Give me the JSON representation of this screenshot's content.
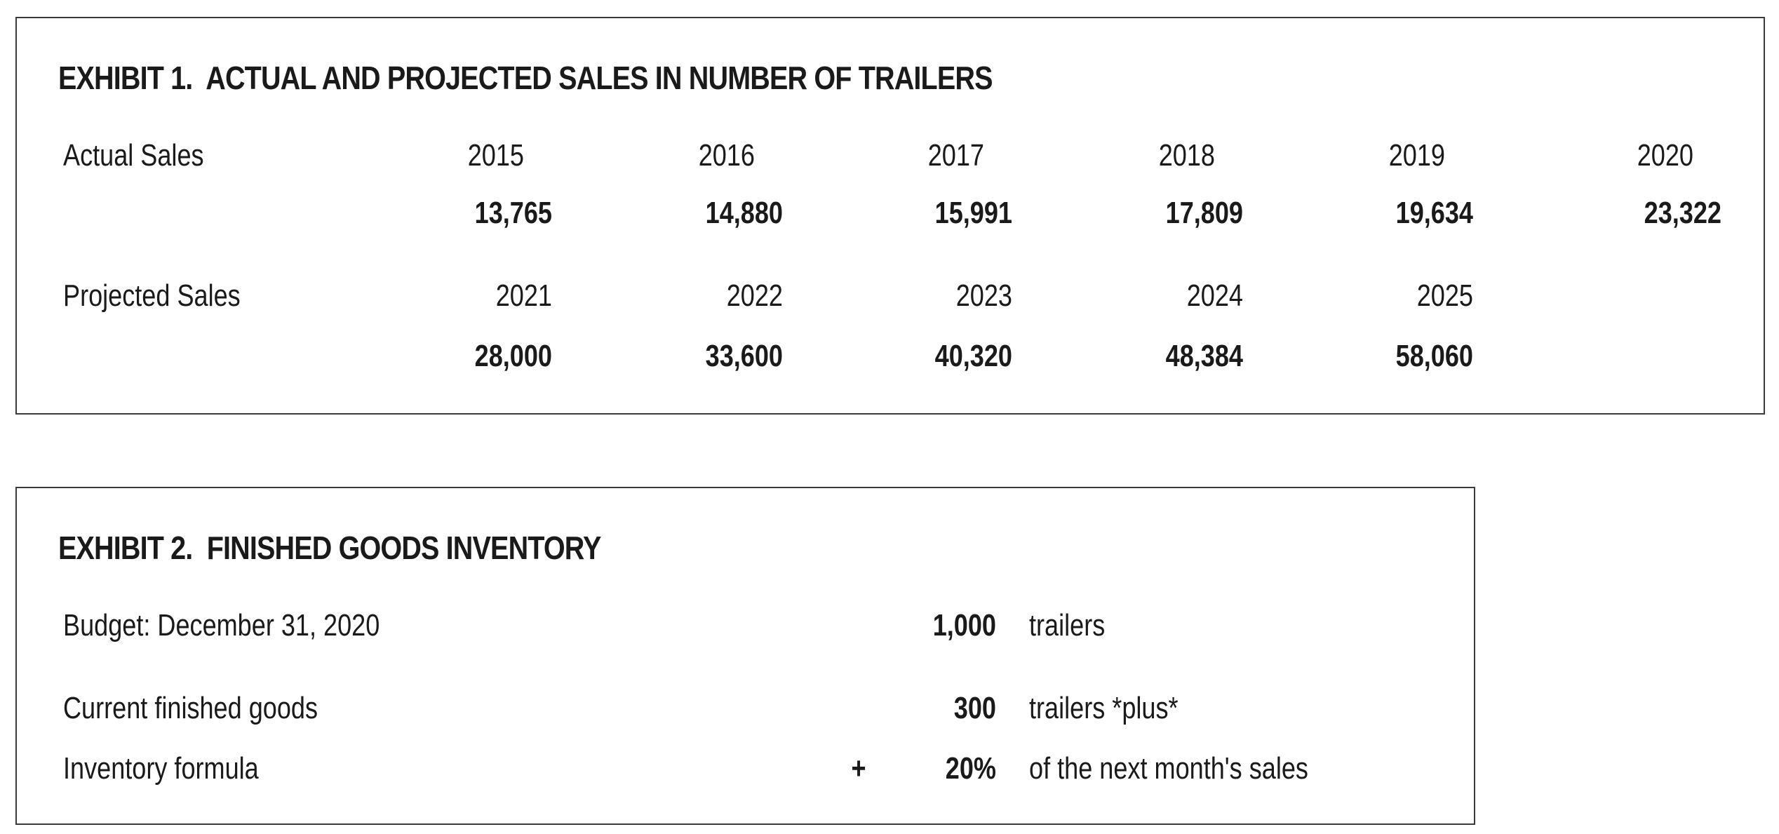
{
  "exhibit1": {
    "title": "EXHIBIT 1.  ACTUAL AND PROJECTED SALES IN NUMBER OF TRAILERS",
    "actual": {
      "label": "Actual Sales",
      "years": [
        "2015",
        "2016",
        "2017",
        "2018",
        "2019",
        "2020"
      ],
      "values": [
        "13,765",
        "14,880",
        "15,991",
        "17,809",
        "19,634",
        "23,322"
      ]
    },
    "projected": {
      "label": "Projected Sales",
      "years": [
        "2021",
        "2022",
        "2023",
        "2024",
        "2025"
      ],
      "values": [
        "28,000",
        "33,600",
        "40,320",
        "48,384",
        "58,060"
      ]
    }
  },
  "exhibit2": {
    "title": "EXHIBIT 2.  FINISHED GOODS INVENTORY",
    "rows": [
      {
        "label": "Budget: December 31, 2020",
        "operator": "",
        "value": "1,000",
        "unit": "trailers"
      },
      {
        "label": "Current finished goods",
        "operator": "",
        "value": "300",
        "unit": "trailers *plus*"
      },
      {
        "label": "Inventory formula",
        "operator": "+",
        "value": "20%",
        "unit": " of the next month's sales"
      }
    ]
  }
}
